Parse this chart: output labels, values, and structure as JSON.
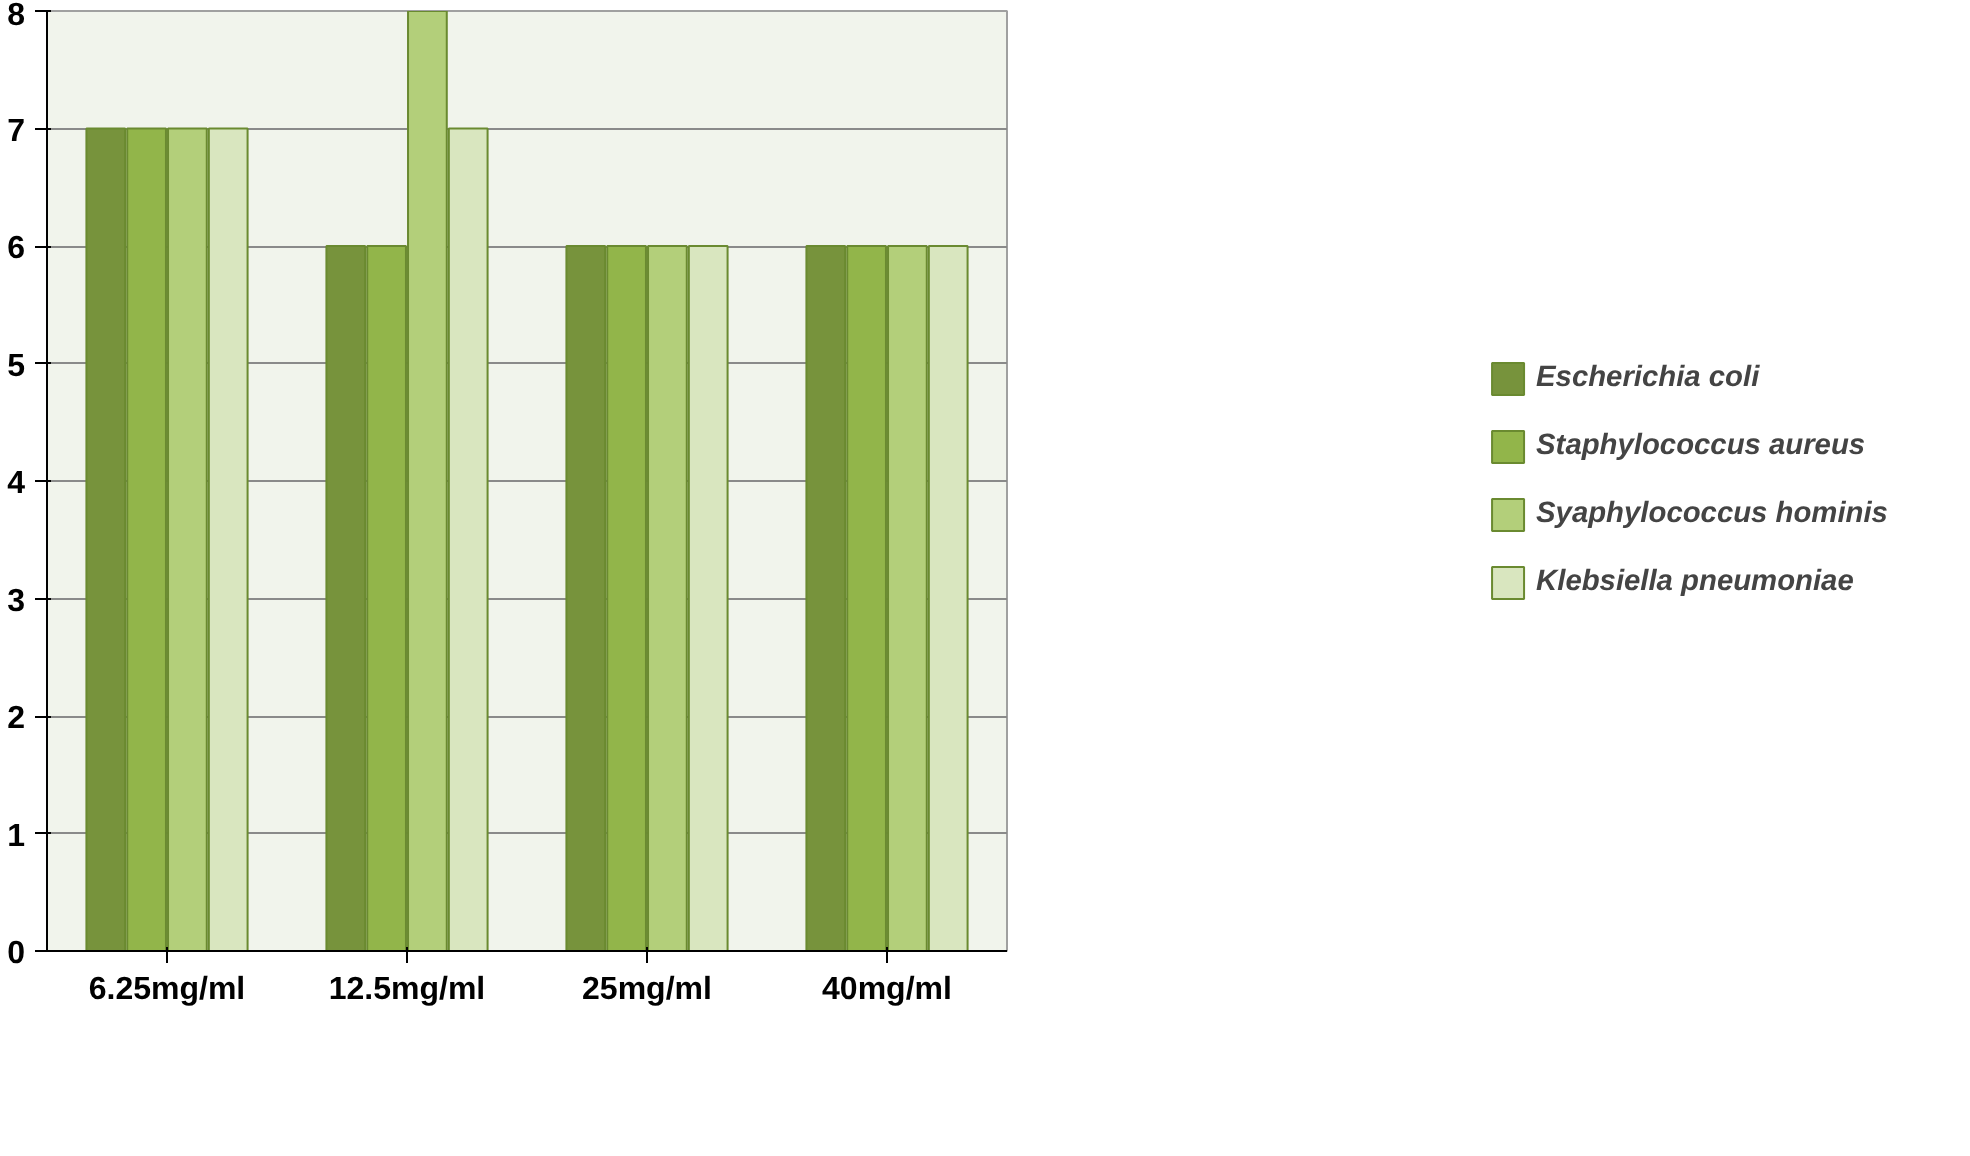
{
  "chart_data": {
    "type": "bar",
    "categories": [
      "6.25mg/ml",
      "12.5mg/ml",
      "25mg/ml",
      "40mg/ml"
    ],
    "series": [
      {
        "name": "Escherichia coli",
        "color": "#77933c",
        "values": [
          7,
          6,
          6,
          6
        ]
      },
      {
        "name": "Staphylococcus aureus",
        "color": "#92b54a",
        "values": [
          7,
          6,
          6,
          6
        ]
      },
      {
        "name": "Syaphylococcus hominis",
        "color": "#b3cf7a",
        "values": [
          7,
          8,
          6,
          6
        ]
      },
      {
        "name": "Klebsiella pneumoniae",
        "color": "#d9e6bf",
        "values": [
          7,
          7,
          6,
          6
        ]
      }
    ],
    "ylim": [
      0,
      8
    ],
    "yticks": [
      0,
      1,
      2,
      3,
      4,
      5,
      6,
      7,
      8
    ],
    "grid": "y",
    "legend": "right"
  }
}
